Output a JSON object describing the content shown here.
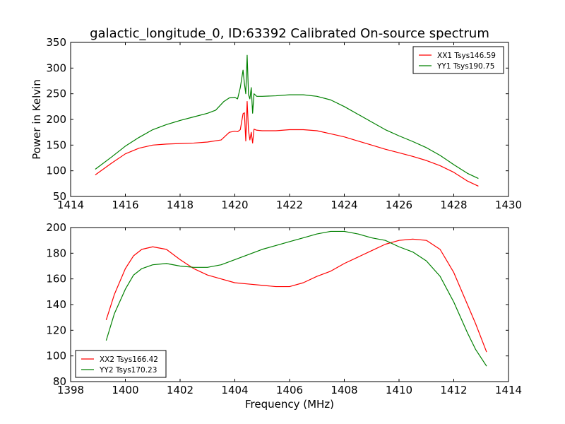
{
  "chart_data": [
    {
      "type": "line",
      "title": "galactic_longitude_0, ID:63392 Calibrated On-source spectrum",
      "xlabel": "",
      "ylabel": "Power in Kelvin",
      "xlim": [
        1414,
        1430
      ],
      "ylim": [
        50,
        350
      ],
      "xticks": [
        1414,
        1416,
        1418,
        1420,
        1422,
        1424,
        1426,
        1428,
        1430
      ],
      "yticks": [
        50,
        100,
        150,
        200,
        250,
        300,
        350
      ],
      "legend_position": "top-right",
      "series": [
        {
          "name": "XX1 Tsys146.59",
          "color": "#ff0000",
          "x": [
            1414.9,
            1415.5,
            1416,
            1416.5,
            1417,
            1417.5,
            1418,
            1418.5,
            1419,
            1419.5,
            1419.8,
            1420.0,
            1420.1,
            1420.2,
            1420.3,
            1420.35,
            1420.4,
            1420.45,
            1420.5,
            1420.55,
            1420.6,
            1420.65,
            1420.7,
            1420.8,
            1421,
            1421.5,
            1422,
            1422.5,
            1423,
            1423.5,
            1424,
            1424.5,
            1425,
            1425.5,
            1426,
            1426.5,
            1427,
            1427.5,
            1428,
            1428.5,
            1428.9
          ],
          "values": [
            92,
            115,
            133,
            144,
            150,
            152,
            153,
            154,
            156,
            160,
            175,
            177,
            176,
            180,
            211,
            213,
            158,
            235,
            178,
            160,
            175,
            154,
            181,
            179,
            178,
            178,
            180,
            180,
            178,
            172,
            166,
            158,
            150,
            142,
            135,
            128,
            120,
            110,
            97,
            80,
            70
          ]
        },
        {
          "name": "YY1 Tsys190.75",
          "color": "#008000",
          "x": [
            1414.9,
            1415.5,
            1416,
            1416.5,
            1417,
            1417.5,
            1418,
            1418.5,
            1419,
            1419.3,
            1419.6,
            1419.8,
            1420.0,
            1420.1,
            1420.2,
            1420.3,
            1420.35,
            1420.4,
            1420.45,
            1420.5,
            1420.55,
            1420.6,
            1420.65,
            1420.7,
            1420.8,
            1421,
            1421.5,
            1422,
            1422.5,
            1423,
            1423.5,
            1424,
            1424.5,
            1425,
            1425.5,
            1426,
            1426.5,
            1427,
            1427.5,
            1428,
            1428.5,
            1428.9
          ],
          "values": [
            103,
            127,
            148,
            165,
            180,
            190,
            198,
            205,
            212,
            218,
            235,
            242,
            243,
            240,
            262,
            296,
            270,
            250,
            325,
            248,
            240,
            262,
            212,
            250,
            245,
            245,
            246,
            248,
            248,
            245,
            238,
            225,
            210,
            195,
            180,
            168,
            157,
            145,
            130,
            112,
            95,
            85
          ]
        }
      ]
    },
    {
      "type": "line",
      "title": "",
      "xlabel": "Frequency (MHz)",
      "ylabel": "",
      "xlim": [
        1398,
        1414
      ],
      "ylim": [
        80,
        200
      ],
      "xticks": [
        1398,
        1400,
        1402,
        1404,
        1406,
        1408,
        1410,
        1412,
        1414
      ],
      "yticks": [
        80,
        100,
        120,
        140,
        160,
        180,
        200
      ],
      "legend_position": "bottom-left",
      "series": [
        {
          "name": "XX2 Tsys166.42",
          "color": "#ff0000",
          "x": [
            1399.3,
            1399.6,
            1400,
            1400.3,
            1400.6,
            1401,
            1401.5,
            1402,
            1402.5,
            1403,
            1403.5,
            1404,
            1404.5,
            1405,
            1405.5,
            1406,
            1406.5,
            1407,
            1407.5,
            1408,
            1408.5,
            1409,
            1409.5,
            1410,
            1410.5,
            1411,
            1411.5,
            1412,
            1412.5,
            1412.8,
            1413.2
          ],
          "values": [
            128,
            148,
            168,
            178,
            183,
            185,
            183,
            175,
            168,
            163,
            160,
            157,
            156,
            155,
            154,
            154,
            157,
            162,
            166,
            172,
            177,
            182,
            187,
            190,
            191,
            190,
            183,
            165,
            140,
            125,
            103
          ]
        },
        {
          "name": "YY2 Tsys170.23",
          "color": "#008000",
          "x": [
            1399.3,
            1399.6,
            1400,
            1400.3,
            1400.6,
            1401,
            1401.5,
            1402,
            1402.5,
            1403,
            1403.5,
            1404,
            1404.5,
            1405,
            1405.5,
            1406,
            1406.5,
            1407,
            1407.5,
            1408,
            1408.5,
            1409,
            1409.5,
            1410,
            1410.5,
            1411,
            1411.5,
            1412,
            1412.5,
            1412.8,
            1413.2
          ],
          "values": [
            112,
            133,
            152,
            163,
            168,
            171,
            172,
            170,
            169,
            169,
            171,
            175,
            179,
            183,
            186,
            189,
            192,
            195,
            197,
            197,
            195,
            192,
            190,
            185,
            181,
            174,
            162,
            142,
            118,
            105,
            92
          ]
        }
      ]
    }
  ]
}
